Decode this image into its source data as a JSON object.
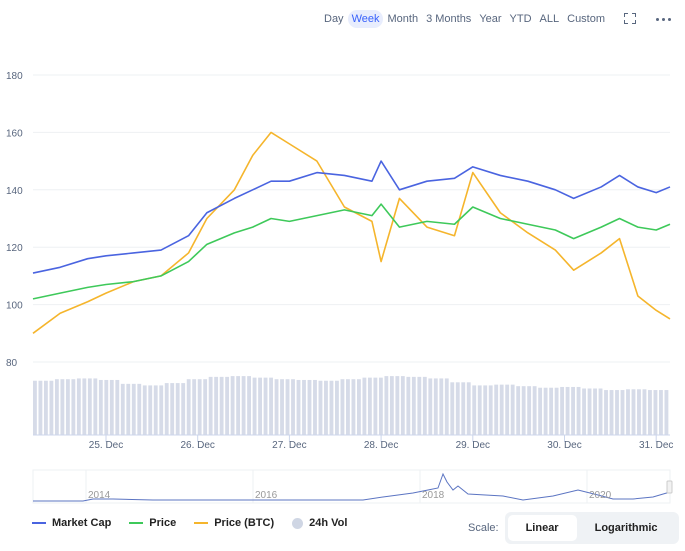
{
  "ranges": [
    "Day",
    "Week",
    "Month",
    "3 Months",
    "Year",
    "YTD",
    "ALL",
    "Custom"
  ],
  "active_range": "Week",
  "icons": {
    "fullscreen": "fullscreen-icon",
    "more": "more-icon"
  },
  "legend": [
    {
      "label": "Market Cap",
      "color": "#4a64e0"
    },
    {
      "label": "Price",
      "color": "#3ec95a"
    },
    {
      "label": "Price (BTC)",
      "color": "#f5b52c"
    },
    {
      "label": "24h Vol",
      "color": "#cfd6e4"
    }
  ],
  "scale": {
    "label": "Scale:",
    "options": [
      "Linear",
      "Logarithmic"
    ],
    "active": "Linear"
  },
  "chart_data": {
    "type": "line",
    "yticks": [
      80,
      100,
      120,
      140,
      160,
      180
    ],
    "ylim": [
      80,
      180
    ],
    "xticks": [
      "25. Dec",
      "26. Dec",
      "27. Dec",
      "28. Dec",
      "29. Dec",
      "30. Dec",
      "31. Dec"
    ],
    "x": [
      24.2,
      24.5,
      24.8,
      25,
      25.3,
      25.6,
      25.9,
      26.1,
      26.4,
      26.6,
      26.8,
      27,
      27.3,
      27.6,
      27.9,
      28,
      28.2,
      28.5,
      28.8,
      29,
      29.3,
      29.6,
      29.9,
      30.1,
      30.4,
      30.6,
      30.8,
      31,
      31.2
    ],
    "series": [
      {
        "name": "Market Cap",
        "values": [
          111,
          113,
          116,
          117,
          118,
          119,
          124,
          132,
          137,
          140,
          143,
          143,
          146,
          145,
          143,
          150,
          140,
          143,
          144,
          148,
          145,
          143,
          140,
          137,
          141,
          145,
          141,
          139,
          141
        ]
      },
      {
        "name": "Price",
        "values": [
          102,
          104,
          106,
          107,
          108,
          110,
          115,
          121,
          125,
          127,
          130,
          129,
          131,
          133,
          131,
          135,
          127,
          129,
          128,
          134,
          130,
          128,
          126,
          123,
          127,
          130,
          127,
          126,
          128
        ]
      },
      {
        "name": "Price (BTC)",
        "values": [
          90,
          97,
          101,
          104,
          108,
          110,
          118,
          130,
          140,
          152,
          160,
          156,
          150,
          134,
          129,
          115,
          137,
          127,
          124,
          146,
          132,
          125,
          119,
          112,
          118,
          123,
          103,
          98,
          95
        ]
      }
    ],
    "volume": [
      70,
      72,
      73,
      71,
      66,
      64,
      67,
      72,
      75,
      76,
      74,
      72,
      71,
      70,
      72,
      74,
      76,
      75,
      73,
      68,
      64,
      65,
      63,
      61,
      62,
      60,
      58,
      59,
      58
    ],
    "navigator": {
      "xticks": [
        "2014",
        "2016",
        "2018",
        "2020"
      ]
    }
  }
}
